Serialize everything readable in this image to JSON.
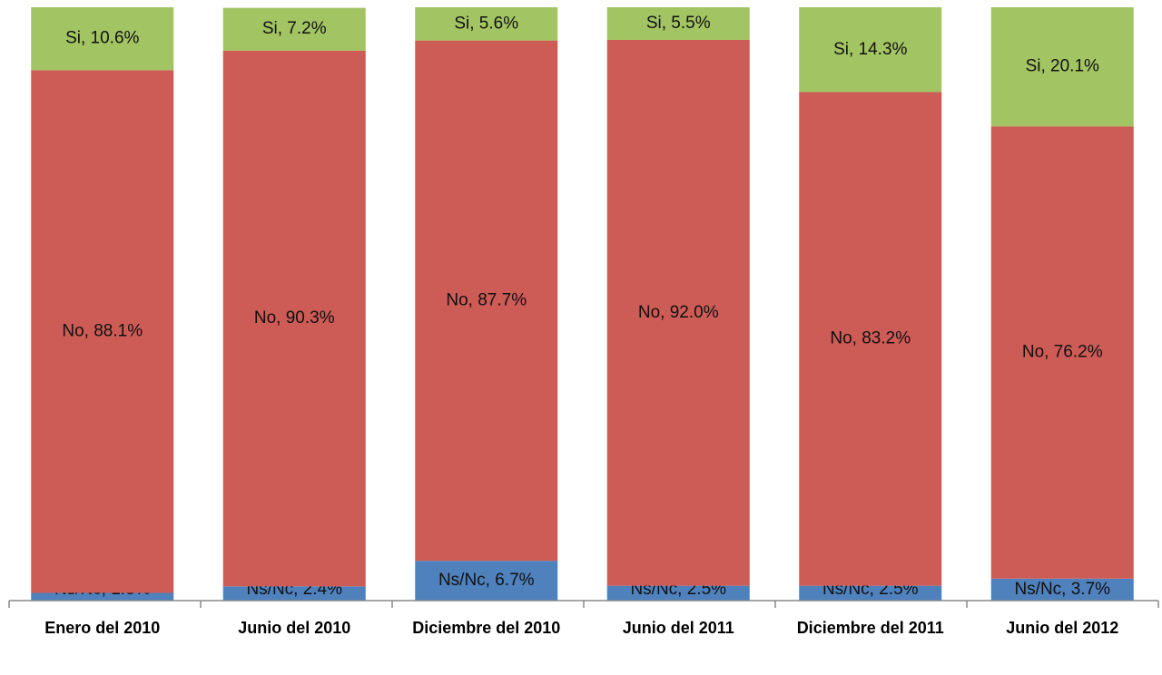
{
  "chart_data": {
    "type": "stacked_bar",
    "categories": [
      "Enero del 2010",
      "Junio del 2010",
      "Diciembre del 2010",
      "Junio del 2011",
      "Diciembre del 2011",
      "Junio del 2012"
    ],
    "series": [
      {
        "color": "#4f81bd",
        "values": [
          1.3,
          2.4,
          6.7,
          2.5,
          2.5,
          3.7
        ],
        "value_labels": [
          "Ns/Nc, 1.3%",
          "Ns/Nc, 2.4%",
          "Ns/Nc, 6.7%",
          "Ns/Nc, 2.5%",
          "Ns/Nc, 2.5%",
          "Ns/Nc, 3.7%"
        ]
      },
      {
        "color": "#cd5b56",
        "values": [
          88.1,
          90.3,
          87.7,
          92.0,
          83.2,
          76.2
        ],
        "value_labels": [
          "No, 88.1%",
          "No, 90.3%",
          "No, 87.7%",
          "No, 92.0%",
          "No, 83.2%",
          "No, 76.2%"
        ]
      },
      {
        "color": "#a3c463",
        "values": [
          10.6,
          7.2,
          5.6,
          5.5,
          14.3,
          20.1
        ],
        "value_labels": [
          "Si, 10.6%",
          "Si, 7.2%",
          "Si, 5.6%",
          "Si, 5.5%",
          "Si, 14.3%",
          "Si, 20.1%"
        ]
      }
    ],
    "ylim": [
      0,
      100
    ]
  }
}
